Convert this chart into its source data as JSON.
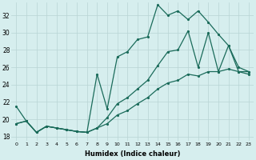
{
  "xlabel": "Humidex (Indice chaleur)",
  "background_color": "#d6eeee",
  "grid_color": "#b8d4d4",
  "line_color": "#1a6b5a",
  "xlim": [
    -0.5,
    23.5
  ],
  "ylim": [
    17.5,
    33.5
  ],
  "yticks": [
    18,
    20,
    22,
    24,
    26,
    28,
    30,
    32
  ],
  "xticks": [
    0,
    1,
    2,
    3,
    4,
    5,
    6,
    7,
    8,
    9,
    10,
    11,
    12,
    13,
    14,
    15,
    16,
    17,
    18,
    19,
    20,
    21,
    22,
    23
  ],
  "line1_x": [
    0,
    1,
    2,
    3,
    4,
    5,
    6,
    7,
    8,
    9,
    10,
    11,
    12,
    13,
    14,
    15,
    16,
    17,
    18,
    19,
    20,
    21,
    22,
    23
  ],
  "line1_y": [
    21.5,
    19.8,
    18.5,
    19.2,
    19.0,
    18.8,
    18.6,
    18.5,
    25.2,
    21.2,
    27.2,
    27.8,
    29.2,
    29.5,
    33.2,
    32.0,
    32.5,
    31.5,
    32.5,
    31.2,
    29.8,
    28.5,
    25.5,
    25.5
  ],
  "line2_x": [
    0,
    1,
    2,
    3,
    4,
    5,
    6,
    7,
    8,
    9,
    10,
    11,
    12,
    13,
    14,
    15,
    16,
    17,
    18,
    19,
    20,
    21,
    22,
    23
  ],
  "line2_y": [
    19.5,
    19.8,
    18.5,
    19.2,
    19.0,
    18.8,
    18.6,
    18.5,
    19.0,
    20.2,
    21.8,
    22.5,
    23.5,
    24.5,
    26.2,
    27.8,
    28.0,
    30.2,
    26.0,
    30.0,
    25.5,
    28.5,
    26.0,
    25.5
  ],
  "line3_x": [
    0,
    1,
    2,
    3,
    4,
    5,
    6,
    7,
    8,
    9,
    10,
    11,
    12,
    13,
    14,
    15,
    16,
    17,
    18,
    19,
    20,
    21,
    22,
    23
  ],
  "line3_y": [
    19.5,
    19.8,
    18.5,
    19.2,
    19.0,
    18.8,
    18.6,
    18.5,
    19.0,
    19.5,
    20.5,
    21.0,
    21.8,
    22.5,
    23.5,
    24.2,
    24.5,
    25.2,
    25.0,
    25.5,
    25.5,
    25.8,
    25.5,
    25.2
  ]
}
